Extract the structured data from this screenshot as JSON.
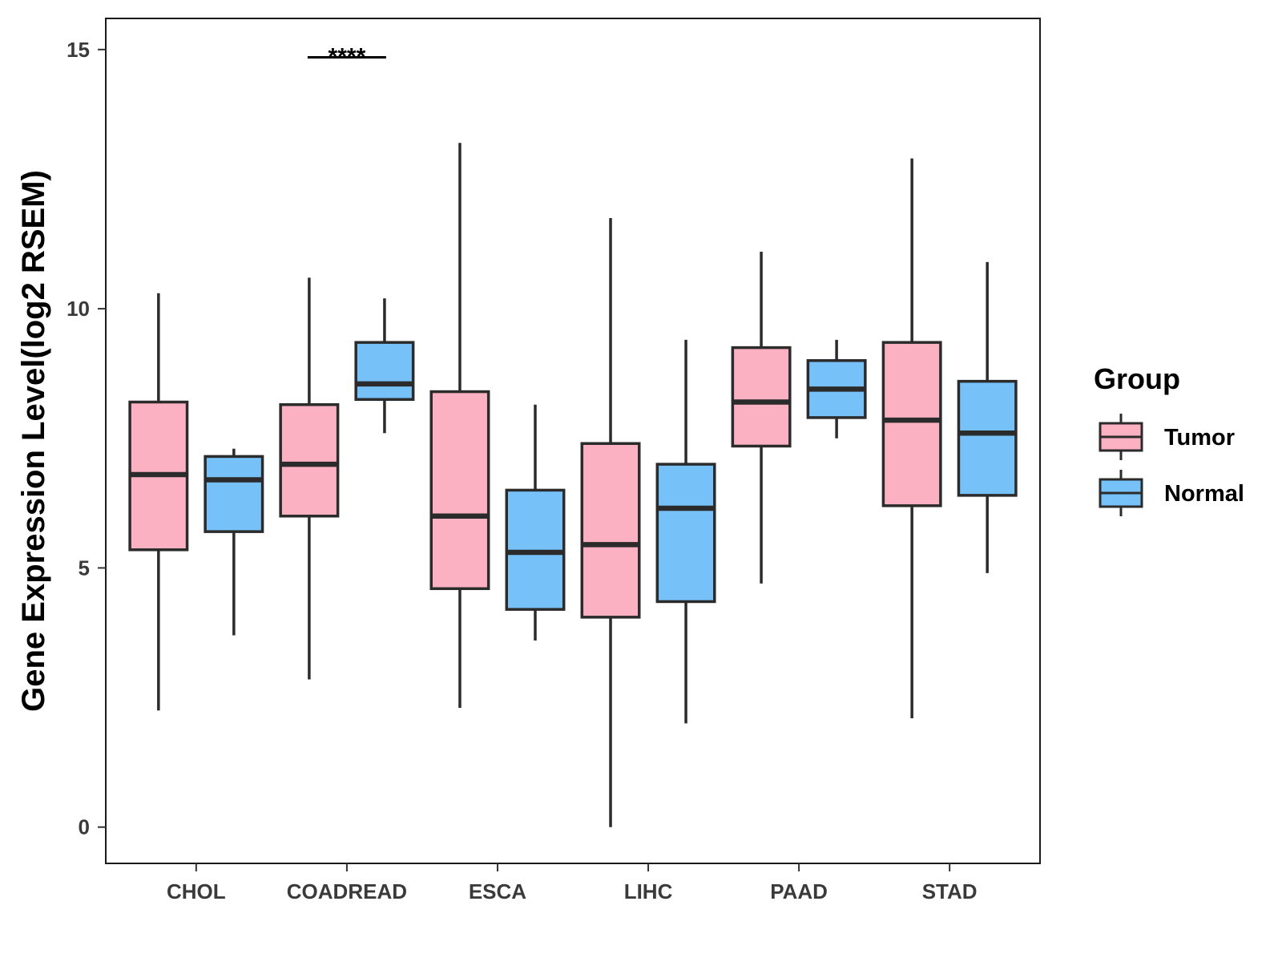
{
  "chart_data": {
    "type": "boxplot",
    "title": "",
    "xlabel": "",
    "ylabel": "Gene Expression Level(log2 RSEM)",
    "ylim": [
      -0.7,
      15.6
    ],
    "yticks": [
      0,
      5,
      10,
      15
    ],
    "categories": [
      "CHOL",
      "COADREAD",
      "ESCA",
      "LIHC",
      "PAAD",
      "STAD"
    ],
    "grid": false,
    "legend": {
      "title": "Group",
      "position": "right",
      "entries": [
        {
          "name": "Tumor",
          "color": "#FBB1C1"
        },
        {
          "name": "Normal",
          "color": "#76C1F8"
        }
      ]
    },
    "series": [
      {
        "name": "Tumor",
        "color": "#FBB1C1",
        "boxes": [
          {
            "category": "CHOL",
            "min": 2.25,
            "q1": 5.35,
            "median": 6.8,
            "q3": 8.2,
            "max": 10.3
          },
          {
            "category": "COADREAD",
            "min": 2.85,
            "q1": 6.0,
            "median": 7.0,
            "q3": 8.15,
            "max": 10.6
          },
          {
            "category": "ESCA",
            "min": 2.3,
            "q1": 4.6,
            "median": 6.0,
            "q3": 8.4,
            "max": 13.2
          },
          {
            "category": "LIHC",
            "min": 0.0,
            "q1": 4.05,
            "median": 5.45,
            "q3": 7.4,
            "max": 11.75
          },
          {
            "category": "PAAD",
            "min": 4.7,
            "q1": 7.35,
            "median": 8.2,
            "q3": 9.25,
            "max": 11.1
          },
          {
            "category": "STAD",
            "min": 2.1,
            "q1": 6.2,
            "median": 7.85,
            "q3": 9.35,
            "max": 12.9
          }
        ]
      },
      {
        "name": "Normal",
        "color": "#76C1F8",
        "boxes": [
          {
            "category": "CHOL",
            "min": 3.7,
            "q1": 5.7,
            "median": 6.7,
            "q3": 7.15,
            "max": 7.3
          },
          {
            "category": "COADREAD",
            "min": 7.6,
            "q1": 8.25,
            "median": 8.55,
            "q3": 9.35,
            "max": 10.2
          },
          {
            "category": "ESCA",
            "min": 3.6,
            "q1": 4.2,
            "median": 5.3,
            "q3": 6.5,
            "max": 8.15
          },
          {
            "category": "LIHC",
            "min": 2.0,
            "q1": 4.35,
            "median": 6.15,
            "q3": 7.0,
            "max": 9.4
          },
          {
            "category": "PAAD",
            "min": 7.5,
            "q1": 7.9,
            "median": 8.45,
            "q3": 9.0,
            "max": 9.4
          },
          {
            "category": "STAD",
            "min": 4.9,
            "q1": 6.4,
            "median": 7.6,
            "q3": 8.6,
            "max": 10.9
          }
        ]
      }
    ],
    "annotations": [
      {
        "category": "COADREAD",
        "text": "****",
        "y": 14.85
      }
    ]
  }
}
